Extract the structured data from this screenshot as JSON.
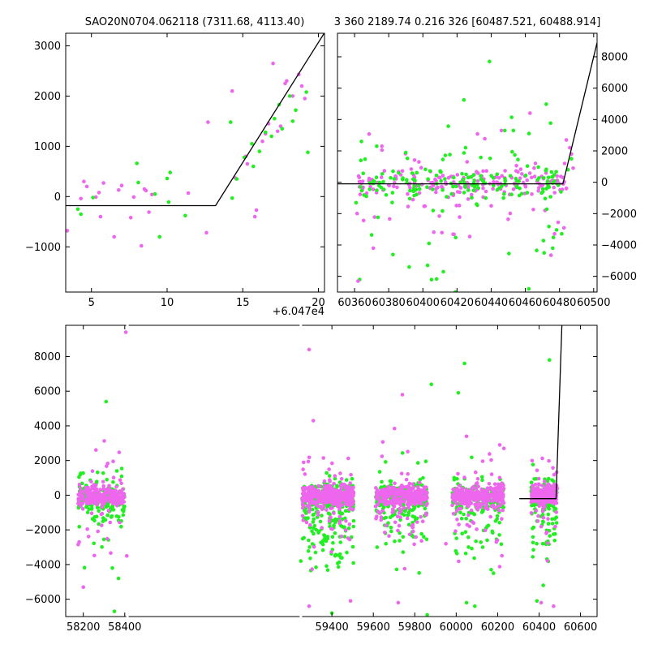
{
  "chart_data": [
    {
      "id": "top-left",
      "type": "scatter",
      "title": "SAO20N0704.062118 (7311.68, 4113.40)",
      "xlim": [
        3.3,
        20.4
      ],
      "ylim": [
        -1900,
        3250
      ],
      "xticks": [
        5,
        10,
        15,
        20
      ],
      "yticks": [
        -1000,
        0,
        1000,
        2000,
        3000
      ],
      "x_offset_label": "+6.047e4",
      "grid": false,
      "series": [
        {
          "color": "#ee66ee",
          "points": [
            [
              3.4,
              -680
            ],
            [
              4.3,
              -40
            ],
            [
              4.5,
              300
            ],
            [
              4.7,
              200
            ],
            [
              5.3,
              -10
            ],
            [
              5.5,
              80
            ],
            [
              5.6,
              -400
            ],
            [
              5.8,
              270
            ],
            [
              6.5,
              -800
            ],
            [
              6.8,
              130
            ],
            [
              7,
              220
            ],
            [
              7.6,
              -420
            ],
            [
              7.8,
              -10
            ],
            [
              8.3,
              -980
            ],
            [
              8.5,
              150
            ],
            [
              8.6,
              120
            ],
            [
              8.8,
              -310
            ],
            [
              9,
              40
            ],
            [
              11.4,
              70
            ],
            [
              12.6,
              -720
            ],
            [
              12.7,
              1480
            ],
            [
              14.3,
              2100
            ],
            [
              14.5,
              370
            ],
            [
              15.2,
              800
            ],
            [
              15.3,
              650
            ],
            [
              15.8,
              -400
            ],
            [
              15.9,
              -270
            ],
            [
              16.3,
              1100
            ],
            [
              16.5,
              1250
            ],
            [
              16.7,
              1450
            ],
            [
              17,
              2650
            ],
            [
              17.3,
              1300
            ],
            [
              17.5,
              1400
            ],
            [
              17.8,
              2250
            ],
            [
              17.9,
              2300
            ],
            [
              18.3,
              2000
            ],
            [
              18.7,
              2430
            ],
            [
              18.9,
              2200
            ],
            [
              19.1,
              1950
            ]
          ]
        },
        {
          "color": "#22ee22",
          "points": [
            [
              4.1,
              -250
            ],
            [
              4.3,
              -350
            ],
            [
              5.1,
              -20
            ],
            [
              8,
              660
            ],
            [
              8.1,
              280
            ],
            [
              9.2,
              50
            ],
            [
              9.5,
              -800
            ],
            [
              10,
              360
            ],
            [
              10.1,
              -110
            ],
            [
              10.2,
              480
            ],
            [
              11.2,
              -380
            ],
            [
              14.2,
              1480
            ],
            [
              14.3,
              -30
            ],
            [
              14.6,
              350
            ],
            [
              15.1,
              780
            ],
            [
              15.6,
              1050
            ],
            [
              15.7,
              600
            ],
            [
              16.1,
              900
            ],
            [
              16.5,
              1280
            ],
            [
              16.9,
              1200
            ],
            [
              17.1,
              1550
            ],
            [
              17.4,
              1830
            ],
            [
              17.6,
              1350
            ],
            [
              18.1,
              2000
            ],
            [
              18.3,
              1500
            ],
            [
              18.5,
              1720
            ],
            [
              19.2,
              2080
            ],
            [
              19.3,
              880
            ]
          ]
        }
      ],
      "model_line": [
        [
          3.3,
          -180
        ],
        [
          13.2,
          -180
        ],
        [
          20.4,
          3260
        ]
      ]
    },
    {
      "id": "top-right",
      "type": "scatter",
      "title": "3 360 2189.74 0.216 326 [60487.521, 60488.914]",
      "xlim": [
        60350,
        60502
      ],
      "ylim": [
        -7000,
        9500
      ],
      "xticks": [
        60360,
        60380,
        60400,
        60420,
        60440,
        60460,
        60480,
        60500
      ],
      "yticks": [
        -6000,
        -4000,
        -2000,
        0,
        2000,
        4000,
        6000,
        8000
      ],
      "grid": false,
      "series": [
        {
          "color": "#ee66ee",
          "name_seed": 11,
          "generator": {
            "xmin": 60360,
            "xmax": 60484,
            "n": 220,
            "core_sd": 450,
            "tail_frac": 0.28,
            "tail_sd": 1800
          }
        },
        {
          "color": "#22ee22",
          "name_seed": 29,
          "generator": {
            "xmin": 60360,
            "xmax": 60484,
            "n": 180,
            "core_sd": 500,
            "tail_frac": 0.3,
            "tail_sd": 2200
          }
        }
      ],
      "extra_points": [
        {
          "color": "#22ee22",
          "points": [
            [
              60363,
              -6200
            ],
            [
              60392,
              -5400
            ],
            [
              60412,
              -5700
            ],
            [
              60419,
              -7000
            ],
            [
              60439,
              7700
            ],
            [
              60448,
              3300
            ],
            [
              60453,
              3300
            ],
            [
              60462,
              -6800
            ],
            [
              60471,
              -4500
            ],
            [
              60476,
              -4200
            ],
            [
              60364,
              2600
            ],
            [
              60373,
              2300
            ],
            [
              60406,
              -1800
            ],
            [
              60425,
              2200
            ],
            [
              60485,
              800
            ],
            [
              60487,
              1500
            ]
          ]
        },
        {
          "color": "#ee66ee",
          "points": [
            [
              60362,
              -6300
            ],
            [
              60371,
              -4200
            ],
            [
              60376,
              2300
            ],
            [
              60446,
              3300
            ],
            [
              60440,
              -1500
            ],
            [
              60484,
              2700
            ],
            [
              60486,
              2200
            ],
            [
              60487,
              1800
            ],
            [
              60483,
              1200
            ],
            [
              60488,
              900
            ],
            [
              60484,
              -400
            ],
            [
              60482,
              300
            ]
          ]
        }
      ],
      "model_line": [
        [
          60350,
          -100
        ],
        [
          60482,
          -100
        ],
        [
          60502,
          8900
        ]
      ]
    },
    {
      "id": "bottom",
      "type": "scatter",
      "title": "",
      "xlim": [
        58115,
        60680
      ],
      "ylim": [
        -7000,
        9800
      ],
      "xticks": [
        58200,
        58400,
        59400,
        59600,
        59800,
        60000,
        60200,
        60400,
        60600
      ],
      "yticks": [
        -6000,
        -4000,
        -2000,
        0,
        2000,
        4000,
        6000,
        8000
      ],
      "gap_markers": [
        58413,
        59250
      ],
      "grid": false,
      "clusters": [
        {
          "xmin": 58175,
          "xmax": 58400,
          "n": 170
        },
        {
          "xmin": 59255,
          "xmax": 59505,
          "n": 330,
          "green_shift": -900
        },
        {
          "xmin": 59610,
          "xmax": 59860,
          "n": 230
        },
        {
          "xmin": 59980,
          "xmax": 60230,
          "n": 230
        },
        {
          "xmin": 60360,
          "xmax": 60488,
          "n": 170
        }
      ],
      "extra_points": [
        {
          "color": "#ee66ee",
          "points": [
            [
              58405,
              9400
            ],
            [
              59290,
              8400
            ],
            [
              59310,
              4300
            ],
            [
              59740,
              5800
            ],
            [
              60050,
              3400
            ],
            [
              60210,
              2900
            ],
            [
              60230,
              2700
            ],
            [
              59290,
              -6400
            ],
            [
              59490,
              -6100
            ],
            [
              59950,
              -2800
            ],
            [
              58180,
              -2700
            ],
            [
              58200,
              -5300
            ],
            [
              59720,
              -6200
            ],
            [
              60410,
              -6200
            ],
            [
              60470,
              -6400
            ],
            [
              58410,
              -3500
            ]
          ]
        },
        {
          "color": "#22ee22",
          "points": [
            [
              58310,
              5400
            ],
            [
              60040,
              7600
            ],
            [
              60450,
              7800
            ],
            [
              59880,
              6400
            ],
            [
              60010,
              5900
            ],
            [
              59860,
              -6900
            ],
            [
              59400,
              -6800
            ],
            [
              60090,
              -6400
            ],
            [
              60050,
              -6200
            ],
            [
              58350,
              -6700
            ],
            [
              58370,
              -4800
            ],
            [
              58340,
              -4200
            ],
            [
              60420,
              -5200
            ],
            [
              60390,
              -6100
            ],
            [
              60180,
              -4500
            ],
            [
              59250,
              -3800
            ]
          ]
        }
      ],
      "model_line": [
        [
          60305,
          -200
        ],
        [
          60482,
          -200
        ],
        [
          60510,
          9800
        ]
      ]
    }
  ]
}
